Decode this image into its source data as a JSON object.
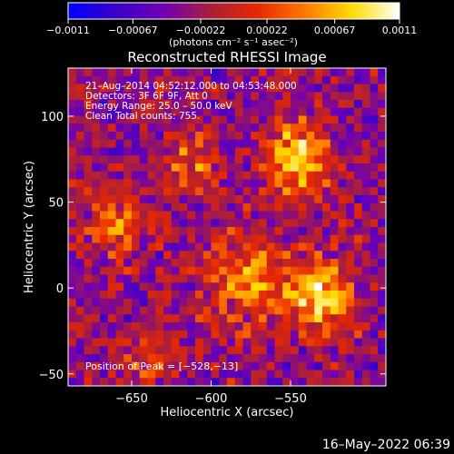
{
  "chart_data": {
    "type": "heatmap",
    "title": "Reconstructed RHESSI Image",
    "xlabel": "Heliocentric X (arcsec)",
    "ylabel": "Heliocentric Y (arcsec)",
    "xlim": [
      -690,
      -490
    ],
    "ylim": [
      -57,
      128
    ],
    "x_ticks": [
      -650,
      -600,
      -550
    ],
    "x_tick_labels": [
      "−650",
      "−600",
      "−550"
    ],
    "y_ticks": [
      -50,
      0,
      50,
      100
    ],
    "y_tick_labels": [
      "−50",
      "0",
      "50",
      "100"
    ],
    "colorbar": {
      "range": [
        -0.0011,
        0.0011
      ],
      "ticks": [
        -0.0011,
        -0.00067,
        -0.00022,
        0.00022,
        0.00067,
        0.0011
      ],
      "tick_labels": [
        "−0.0011",
        "−0.00067",
        "−0.00022",
        "0.00022",
        "0.00067",
        "0.0011"
      ],
      "units": "(photons cm⁻² s⁻¹ asec⁻²)",
      "colormap": [
        "#0000ff",
        "#3a00c8",
        "#6e00b4",
        "#aa1e3c",
        "#e62800",
        "#ff7800",
        "#ffdc00",
        "#ffffff"
      ]
    },
    "annotations": [
      "21–Aug–2014 04:52:12.000 to 04:53:48.000",
      "Detectors: 3F 6F 9F, Att 0",
      "Energy Range: 25.0 – 50.0 keV",
      "Clean    Total counts: 755."
    ],
    "peak_label": "Position of Peak = [−528,−13]",
    "peak": [
      -528,
      -13
    ],
    "hotspots": [
      {
        "x": -545,
        "y": 75,
        "amp": 0.0011,
        "sigma": 14
      },
      {
        "x": -530,
        "y": -5,
        "amp": 0.0011,
        "sigma": 14
      },
      {
        "x": -575,
        "y": 5,
        "amp": 0.0007,
        "sigma": 20
      },
      {
        "x": -660,
        "y": 35,
        "amp": 0.0007,
        "sigma": 12
      },
      {
        "x": -612,
        "y": 75,
        "amp": 0.0006,
        "sigma": 12
      },
      {
        "x": -640,
        "y": -40,
        "amp": 0.0005,
        "sigma": 12
      }
    ],
    "grid": false,
    "legend": "none"
  },
  "footer": {
    "date": "16–May–2022 06:39"
  }
}
